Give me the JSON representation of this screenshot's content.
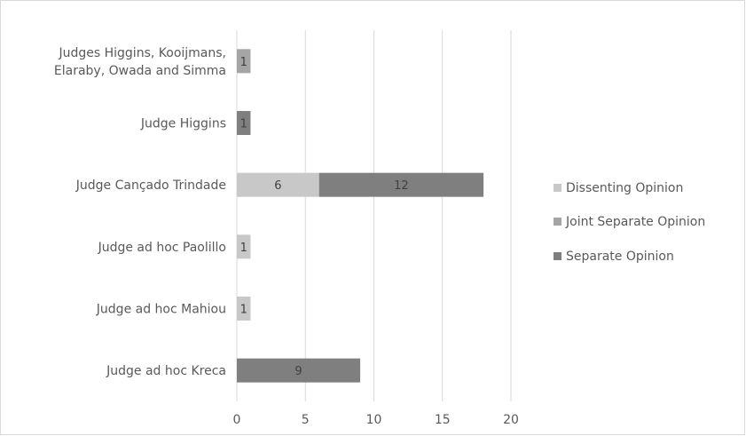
{
  "chart_data": {
    "type": "bar",
    "orientation": "horizontal",
    "stacked": true,
    "categories": [
      [
        "Judges Higgins, Kooijmans,",
        "Elaraby, Owada and Simma"
      ],
      [
        "Judge Higgins"
      ],
      [
        "Judge Cançado Trindade"
      ],
      [
        "Judge ad hoc Paolillo"
      ],
      [
        "Judge ad hoc Mahiou"
      ],
      [
        "Judge ad hoc Kreca"
      ]
    ],
    "series": [
      {
        "name": "Dissenting Opinion",
        "color": "#c8c8c8",
        "values": [
          0,
          0,
          6,
          1,
          1,
          0
        ]
      },
      {
        "name": "Joint Separate Opinion",
        "color": "#a5a5a5",
        "values": [
          1,
          0,
          0,
          0,
          0,
          0
        ]
      },
      {
        "name": "Separate Opinion",
        "color": "#7f7f7f",
        "values": [
          0,
          1,
          12,
          0,
          0,
          9
        ]
      }
    ],
    "xlim": [
      0,
      20
    ],
    "xticks": [
      "0",
      "5",
      "10",
      "15",
      "20"
    ],
    "grid": true,
    "legend_position": "right",
    "title": "",
    "xlabel": "",
    "ylabel": ""
  }
}
